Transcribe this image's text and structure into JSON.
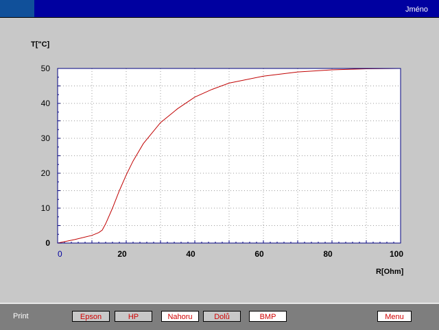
{
  "header": {
    "user_label": "Jméno"
  },
  "footer": {
    "print_label": "Print",
    "buttons": [
      {
        "label": "Epson"
      },
      {
        "label": "HP"
      },
      {
        "label": "Nahoru"
      },
      {
        "label": "Dolů"
      },
      {
        "label": "BMP"
      },
      {
        "label": "Menu"
      }
    ]
  },
  "colors": {
    "titlebar": "#0000a0",
    "curve": "#c00000",
    "axis": "#000080"
  },
  "chart_data": {
    "type": "line",
    "xlabel": "R[Ohm]",
    "ylabel": "T[\"C]",
    "xlim": [
      0,
      100
    ],
    "ylim": [
      0,
      50
    ],
    "xticks": [
      "0",
      "20",
      "40",
      "60",
      "80",
      "100"
    ],
    "yticks": [
      "0",
      "10",
      "20",
      "30",
      "40",
      "50"
    ],
    "grid": true,
    "x": [
      0,
      5,
      10,
      12,
      13,
      14,
      16,
      18,
      20,
      22,
      25,
      30,
      35,
      40,
      45,
      50,
      60,
      70,
      80,
      90,
      100
    ],
    "y": [
      0,
      1,
      2.2,
      3,
      3.7,
      5.5,
      10,
      15,
      19.5,
      23.5,
      28.5,
      34.5,
      38.5,
      41.8,
      44,
      45.8,
      47.8,
      49,
      49.6,
      49.9,
      50
    ]
  }
}
